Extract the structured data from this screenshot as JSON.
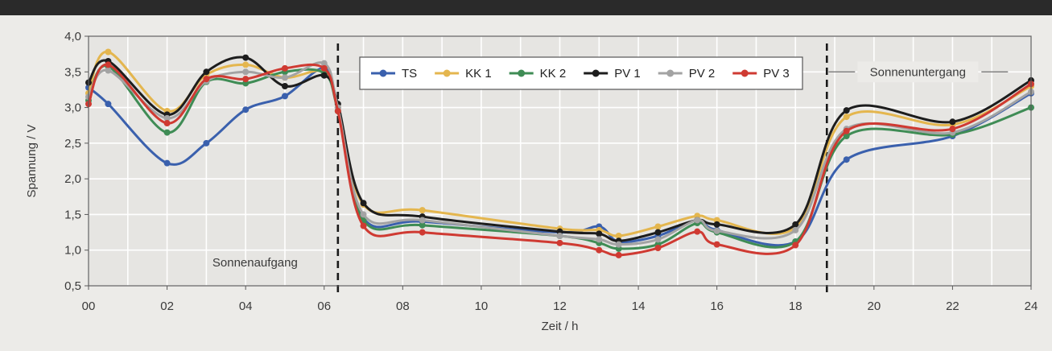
{
  "chart_data": {
    "type": "line",
    "title": "",
    "xlabel": "Zeit / h",
    "ylabel": "Spannung / V",
    "xlim": [
      0,
      24
    ],
    "ylim": [
      0.5,
      4.0
    ],
    "grid": true,
    "legend_position": "top-center",
    "x_ticks": [
      {
        "value": 0,
        "label": "00"
      },
      {
        "value": 2,
        "label": "02"
      },
      {
        "value": 4,
        "label": "04"
      },
      {
        "value": 6,
        "label": "06"
      },
      {
        "value": 8,
        "label": "08"
      },
      {
        "value": 10,
        "label": "10"
      },
      {
        "value": 12,
        "label": "12"
      },
      {
        "value": 14,
        "label": "14"
      },
      {
        "value": 16,
        "label": "16"
      },
      {
        "value": 18,
        "label": "18"
      },
      {
        "value": 20,
        "label": "20"
      },
      {
        "value": 22,
        "label": "22"
      },
      {
        "value": 24,
        "label": "24"
      }
    ],
    "y_ticks": [
      {
        "value": 0.5,
        "label": "0,5"
      },
      {
        "value": 1.0,
        "label": "1,0"
      },
      {
        "value": 1.5,
        "label": "1,5"
      },
      {
        "value": 2.0,
        "label": "2,0"
      },
      {
        "value": 2.5,
        "label": "2,5"
      },
      {
        "value": 3.0,
        "label": "3,0"
      },
      {
        "value": 3.5,
        "label": "3,5"
      },
      {
        "value": 4.0,
        "label": "4,0"
      }
    ],
    "annotations": [
      {
        "text": "Sonnenaufgang",
        "x": 6.35,
        "kind": "sunrise"
      },
      {
        "text": "Sonnenuntergang",
        "x": 18.8,
        "kind": "sunset"
      }
    ],
    "series": [
      {
        "name": "TS",
        "color": "#3a60ad",
        "points": [
          [
            0,
            3.28
          ],
          [
            0.5,
            3.05
          ],
          [
            2,
            2.22
          ],
          [
            3,
            2.5
          ],
          [
            4,
            2.97
          ],
          [
            5,
            3.16
          ],
          [
            6,
            3.55
          ],
          [
            6.35,
            3.0
          ],
          [
            7,
            1.45
          ],
          [
            8.5,
            1.4
          ],
          [
            12,
            1.25
          ],
          [
            13,
            1.33
          ],
          [
            13.5,
            1.12
          ],
          [
            14.5,
            1.2
          ],
          [
            15.5,
            1.42
          ],
          [
            16,
            1.28
          ],
          [
            18,
            1.12
          ],
          [
            19.3,
            2.27
          ],
          [
            22,
            2.6
          ],
          [
            24,
            3.2
          ]
        ]
      },
      {
        "name": "KK 1",
        "color": "#e4b64e",
        "points": [
          [
            0,
            3.2
          ],
          [
            0.5,
            3.78
          ],
          [
            2,
            2.95
          ],
          [
            3,
            3.46
          ],
          [
            4,
            3.6
          ],
          [
            5,
            3.42
          ],
          [
            6,
            3.5
          ],
          [
            6.35,
            3.0
          ],
          [
            7,
            1.64
          ],
          [
            8.5,
            1.56
          ],
          [
            12,
            1.3
          ],
          [
            13,
            1.28
          ],
          [
            13.5,
            1.2
          ],
          [
            14.5,
            1.33
          ],
          [
            15.5,
            1.48
          ],
          [
            16,
            1.42
          ],
          [
            18,
            1.32
          ],
          [
            19.3,
            2.87
          ],
          [
            22,
            2.76
          ],
          [
            24,
            3.3
          ]
        ]
      },
      {
        "name": "KK 2",
        "color": "#3f8c55",
        "points": [
          [
            0,
            3.1
          ],
          [
            0.5,
            3.58
          ],
          [
            2,
            2.65
          ],
          [
            3,
            3.36
          ],
          [
            4,
            3.34
          ],
          [
            5,
            3.5
          ],
          [
            6,
            3.48
          ],
          [
            6.35,
            2.95
          ],
          [
            7,
            1.42
          ],
          [
            8.5,
            1.35
          ],
          [
            12,
            1.2
          ],
          [
            13,
            1.1
          ],
          [
            13.5,
            1.02
          ],
          [
            14.5,
            1.08
          ],
          [
            15.5,
            1.38
          ],
          [
            16,
            1.25
          ],
          [
            18,
            1.12
          ],
          [
            19.3,
            2.6
          ],
          [
            22,
            2.62
          ],
          [
            24,
            3.0
          ]
        ]
      },
      {
        "name": "PV 1",
        "color": "#1d1d1d",
        "points": [
          [
            0,
            3.35
          ],
          [
            0.5,
            3.65
          ],
          [
            2,
            2.9
          ],
          [
            3,
            3.5
          ],
          [
            4,
            3.7
          ],
          [
            5,
            3.3
          ],
          [
            6,
            3.45
          ],
          [
            6.35,
            3.05
          ],
          [
            7,
            1.66
          ],
          [
            8.5,
            1.47
          ],
          [
            12,
            1.26
          ],
          [
            13,
            1.23
          ],
          [
            13.5,
            1.13
          ],
          [
            14.5,
            1.25
          ],
          [
            15.5,
            1.42
          ],
          [
            16,
            1.36
          ],
          [
            18,
            1.36
          ],
          [
            19.3,
            2.96
          ],
          [
            22,
            2.8
          ],
          [
            24,
            3.38
          ]
        ]
      },
      {
        "name": "PV 2",
        "color": "#a3a3a3",
        "points": [
          [
            0,
            3.15
          ],
          [
            0.5,
            3.52
          ],
          [
            2,
            2.85
          ],
          [
            3,
            3.37
          ],
          [
            4,
            3.5
          ],
          [
            5,
            3.42
          ],
          [
            6,
            3.62
          ],
          [
            6.35,
            3.0
          ],
          [
            7,
            1.5
          ],
          [
            8.5,
            1.42
          ],
          [
            12,
            1.2
          ],
          [
            13,
            1.15
          ],
          [
            13.5,
            1.08
          ],
          [
            14.5,
            1.15
          ],
          [
            15.5,
            1.42
          ],
          [
            16,
            1.27
          ],
          [
            18,
            1.28
          ],
          [
            19.3,
            2.7
          ],
          [
            22,
            2.65
          ],
          [
            24,
            3.22
          ]
        ]
      },
      {
        "name": "PV 3",
        "color": "#cf3a32",
        "points": [
          [
            0,
            3.05
          ],
          [
            0.5,
            3.6
          ],
          [
            2,
            2.78
          ],
          [
            3,
            3.4
          ],
          [
            4,
            3.4
          ],
          [
            5,
            3.55
          ],
          [
            6,
            3.55
          ],
          [
            6.35,
            2.95
          ],
          [
            7,
            1.34
          ],
          [
            8.5,
            1.25
          ],
          [
            12,
            1.1
          ],
          [
            13,
            1.0
          ],
          [
            13.5,
            0.93
          ],
          [
            14.5,
            1.03
          ],
          [
            15.5,
            1.26
          ],
          [
            16,
            1.08
          ],
          [
            18,
            1.07
          ],
          [
            19.3,
            2.67
          ],
          [
            22,
            2.7
          ],
          [
            24,
            3.33
          ]
        ]
      }
    ]
  }
}
